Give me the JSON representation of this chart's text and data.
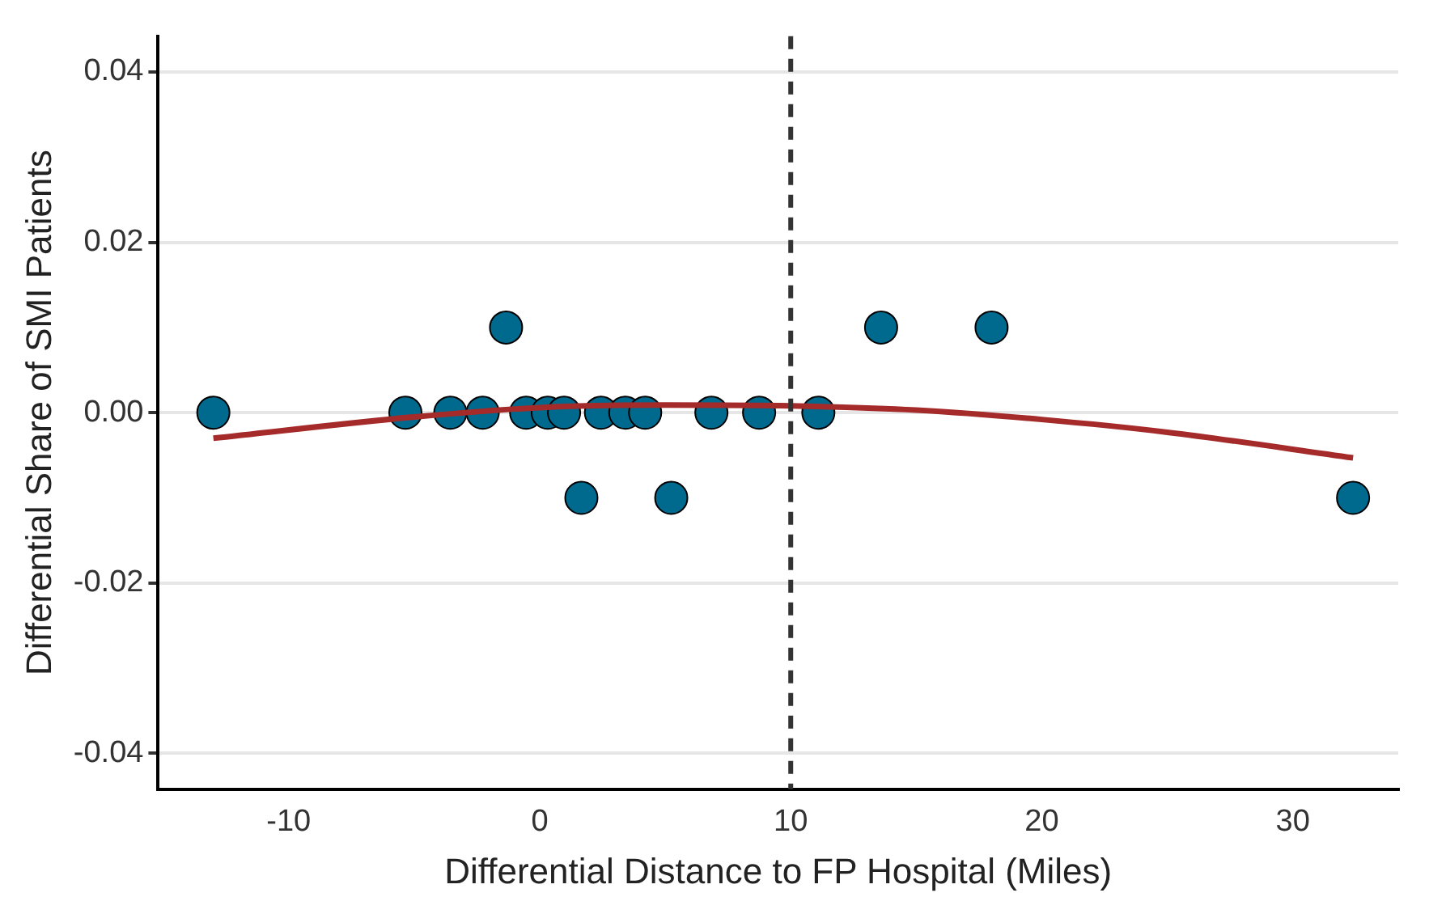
{
  "chart_data": {
    "type": "scatter",
    "xlabel": "Differential Distance to FP Hospital (Miles)",
    "ylabel": "Differential Share of SMI Patients",
    "series": [
      {
        "type": "scatter",
        "marker": "circle",
        "color": "#006a8e",
        "x": [
          -13.0,
          -5.35,
          -3.56,
          -2.27,
          -1.34,
          -0.54,
          0.32,
          0.97,
          1.66,
          2.44,
          3.41,
          4.2,
          5.24,
          6.84,
          8.74,
          11.1,
          13.6,
          18.0,
          32.4
        ],
        "values": [
          0,
          0,
          0,
          0,
          0.01,
          0,
          0,
          0,
          -0.01,
          0,
          0,
          0,
          -0.01,
          0,
          0,
          0,
          0.01,
          0.01,
          -0.01
        ]
      },
      {
        "type": "line",
        "marker": "none",
        "color": "#a52a2a",
        "x": [
          -13,
          -5,
          0,
          5,
          10,
          15,
          20,
          25,
          32.4
        ],
        "values": [
          -0.003,
          -0.0005,
          0.0006,
          0.0009,
          0.0008,
          0.0003,
          -0.0008,
          -0.0023,
          -0.0053
        ]
      }
    ],
    "xlim": [
      -15.2,
      34.2
    ],
    "xticks": [
      -10,
      0,
      10,
      20,
      30
    ],
    "ylim": [
      -0.0442,
      0.0442
    ],
    "yticks": [
      {
        "value": -0.04,
        "label": "-0.04"
      },
      {
        "value": -0.02,
        "label": "-0.02"
      },
      {
        "value": 0,
        "label": "0.00"
      },
      {
        "value": 0.02,
        "label": "0.02"
      },
      {
        "value": 0.04,
        "label": "0.04"
      }
    ],
    "grid": "y",
    "ref_lines": [
      {
        "axis": "x",
        "value": 10,
        "color": "#333333",
        "line_style": "dashed"
      }
    ]
  }
}
